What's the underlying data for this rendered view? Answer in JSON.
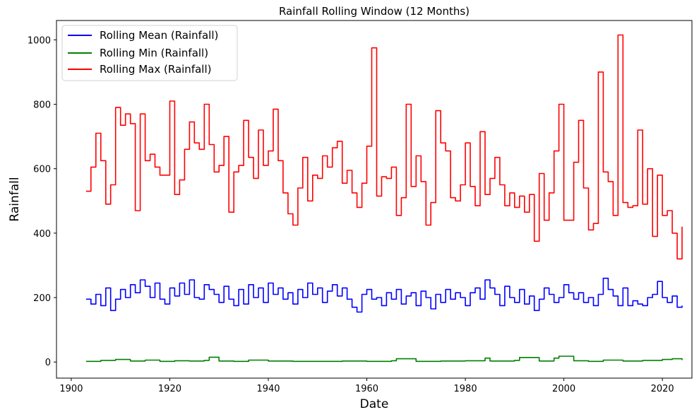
{
  "chart_data": {
    "type": "line",
    "title": "Rainfall Rolling Window (12 Months)",
    "xlabel": "Date",
    "ylabel": "Rainfall",
    "xlim": [
      1897,
      2026
    ],
    "ylim": [
      -50,
      1060
    ],
    "xticks": [
      1900,
      1920,
      1940,
      1960,
      1980,
      2000,
      2020
    ],
    "yticks": [
      0,
      200,
      400,
      600,
      800,
      1000
    ],
    "grid": false,
    "legend_position": "top-left",
    "series": [
      {
        "name": "Rolling Mean (Rainfall)",
        "color": "#0000ff",
        "x": [
          1903,
          1904,
          1905,
          1906,
          1907,
          1908,
          1909,
          1910,
          1911,
          1912,
          1913,
          1914,
          1915,
          1916,
          1917,
          1918,
          1919,
          1920,
          1921,
          1922,
          1923,
          1924,
          1925,
          1926,
          1927,
          1928,
          1929,
          1930,
          1931,
          1932,
          1933,
          1934,
          1935,
          1936,
          1937,
          1938,
          1939,
          1940,
          1941,
          1942,
          1943,
          1944,
          1945,
          1946,
          1947,
          1948,
          1949,
          1950,
          1951,
          1952,
          1953,
          1954,
          1955,
          1956,
          1957,
          1958,
          1959,
          1960,
          1961,
          1962,
          1963,
          1964,
          1965,
          1966,
          1967,
          1968,
          1969,
          1970,
          1971,
          1972,
          1973,
          1974,
          1975,
          1976,
          1977,
          1978,
          1979,
          1980,
          1981,
          1982,
          1983,
          1984,
          1985,
          1986,
          1987,
          1988,
          1989,
          1990,
          1991,
          1992,
          1993,
          1994,
          1995,
          1996,
          1997,
          1998,
          1999,
          2000,
          2001,
          2002,
          2003,
          2004,
          2005,
          2006,
          2007,
          2008,
          2009,
          2010,
          2011,
          2012,
          2013,
          2014,
          2015,
          2016,
          2017,
          2018,
          2019,
          2020,
          2021,
          2022,
          2023,
          2024
        ],
        "values": [
          195,
          180,
          210,
          175,
          230,
          160,
          195,
          225,
          200,
          240,
          215,
          255,
          235,
          200,
          245,
          195,
          180,
          230,
          205,
          245,
          210,
          255,
          200,
          195,
          240,
          225,
          210,
          185,
          235,
          195,
          175,
          225,
          180,
          240,
          200,
          230,
          185,
          245,
          210,
          230,
          195,
          215,
          180,
          225,
          200,
          245,
          210,
          230,
          185,
          220,
          240,
          205,
          230,
          195,
          170,
          155,
          210,
          225,
          195,
          200,
          175,
          215,
          195,
          225,
          180,
          205,
          215,
          175,
          220,
          200,
          165,
          210,
          185,
          225,
          195,
          215,
          200,
          175,
          215,
          230,
          195,
          255,
          230,
          210,
          175,
          235,
          200,
          185,
          225,
          180,
          205,
          160,
          195,
          230,
          210,
          185,
          200,
          240,
          215,
          195,
          215,
          185,
          200,
          175,
          210,
          260,
          225,
          205,
          175,
          230,
          175,
          190,
          180,
          175,
          200,
          210,
          250,
          200,
          185,
          205,
          170,
          175
        ]
      },
      {
        "name": "Rolling Min (Rainfall)",
        "color": "#008000",
        "x": [
          1903,
          1906,
          1909,
          1912,
          1915,
          1918,
          1921,
          1924,
          1927,
          1928,
          1930,
          1933,
          1936,
          1940,
          1945,
          1950,
          1955,
          1960,
          1965,
          1966,
          1970,
          1975,
          1980,
          1984,
          1985,
          1990,
          1991,
          1995,
          1998,
          1999,
          2002,
          2005,
          2008,
          2012,
          2016,
          2020,
          2022,
          2024
        ],
        "values": [
          2,
          5,
          8,
          3,
          6,
          2,
          4,
          3,
          5,
          15,
          3,
          2,
          6,
          3,
          2,
          2,
          3,
          2,
          4,
          10,
          2,
          3,
          4,
          12,
          3,
          5,
          14,
          3,
          12,
          18,
          4,
          2,
          6,
          3,
          5,
          8,
          10,
          6
        ]
      },
      {
        "name": "Rolling Max (Rainfall)",
        "color": "#ff0000",
        "x": [
          1903,
          1904,
          1905,
          1906,
          1907,
          1908,
          1909,
          1910,
          1911,
          1912,
          1913,
          1914,
          1915,
          1916,
          1917,
          1918,
          1919,
          1920,
          1921,
          1922,
          1923,
          1924,
          1925,
          1926,
          1927,
          1928,
          1929,
          1930,
          1931,
          1932,
          1933,
          1934,
          1935,
          1936,
          1937,
          1938,
          1939,
          1940,
          1941,
          1942,
          1943,
          1944,
          1945,
          1946,
          1947,
          1948,
          1949,
          1950,
          1951,
          1952,
          1953,
          1954,
          1955,
          1956,
          1957,
          1958,
          1959,
          1960,
          1961,
          1962,
          1963,
          1964,
          1965,
          1966,
          1967,
          1968,
          1969,
          1970,
          1971,
          1972,
          1973,
          1974,
          1975,
          1976,
          1977,
          1978,
          1979,
          1980,
          1981,
          1982,
          1983,
          1984,
          1985,
          1986,
          1987,
          1988,
          1989,
          1990,
          1991,
          1992,
          1993,
          1994,
          1995,
          1996,
          1997,
          1998,
          1999,
          2000,
          2001,
          2002,
          2003,
          2004,
          2005,
          2006,
          2007,
          2008,
          2009,
          2010,
          2011,
          2012,
          2013,
          2014,
          2015,
          2016,
          2017,
          2018,
          2019,
          2020,
          2021,
          2022,
          2023,
          2024
        ],
        "values": [
          530,
          605,
          710,
          625,
          490,
          550,
          790,
          735,
          770,
          740,
          470,
          770,
          625,
          645,
          605,
          580,
          580,
          810,
          520,
          565,
          660,
          745,
          680,
          660,
          800,
          675,
          590,
          610,
          700,
          465,
          590,
          610,
          750,
          635,
          570,
          720,
          610,
          655,
          785,
          625,
          525,
          460,
          425,
          540,
          635,
          500,
          580,
          570,
          640,
          605,
          665,
          685,
          555,
          595,
          525,
          480,
          555,
          670,
          975,
          515,
          575,
          570,
          605,
          455,
          510,
          800,
          545,
          640,
          560,
          425,
          495,
          780,
          680,
          655,
          510,
          500,
          550,
          680,
          545,
          485,
          715,
          520,
          570,
          635,
          550,
          485,
          525,
          480,
          515,
          465,
          520,
          375,
          585,
          440,
          525,
          655,
          800,
          440,
          440,
          620,
          750,
          540,
          410,
          430,
          900,
          590,
          560,
          455,
          1015,
          495,
          480,
          485,
          720,
          490,
          600,
          390,
          580,
          455,
          470,
          400,
          320,
          420
        ]
      }
    ]
  }
}
